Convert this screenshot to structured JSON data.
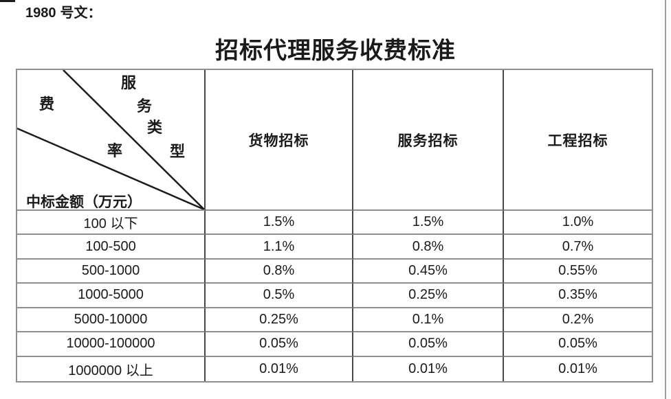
{
  "doc_number": {
    "num": "1980",
    "label": "号文："
  },
  "title": "招标代理服务收费标准",
  "table": {
    "corner": {
      "diag_top_label": "服务类型",
      "diag_top_chars": [
        "服",
        "务",
        "类",
        "型"
      ],
      "diag_left_label": "费率",
      "diag_left_chars": [
        "费",
        "率"
      ],
      "bottom_label": "中标金额（万元）"
    },
    "columns": [
      "货物招标",
      "服务招标",
      "工程招标"
    ],
    "rows": [
      {
        "label": "100 以下",
        "values": [
          "1.5%",
          "1.5%",
          "1.0%"
        ]
      },
      {
        "label": "100-500",
        "values": [
          "1.1%",
          "0.8%",
          "0.7%"
        ]
      },
      {
        "label": "500-1000",
        "values": [
          "0.8%",
          "0.45%",
          "0.55%"
        ]
      },
      {
        "label": "1000-5000",
        "values": [
          "0.5%",
          "0.25%",
          "0.35%"
        ]
      },
      {
        "label": "5000-10000",
        "values": [
          "0.25%",
          "0.1%",
          "0.2%"
        ]
      },
      {
        "label": "10000-100000",
        "values": [
          "0.05%",
          "0.05%",
          "0.05%"
        ]
      },
      {
        "label": "1000000 以上",
        "values": [
          "0.01%",
          "0.01%",
          "0.01%"
        ]
      }
    ],
    "colors": {
      "text": "#1a1a1a",
      "border_outer": "#8f8f8f",
      "border_inner_vertical": "#474747",
      "border_inner_horizontal": "#8f8f8f",
      "diagonal_line": "#1c1c1c"
    }
  }
}
